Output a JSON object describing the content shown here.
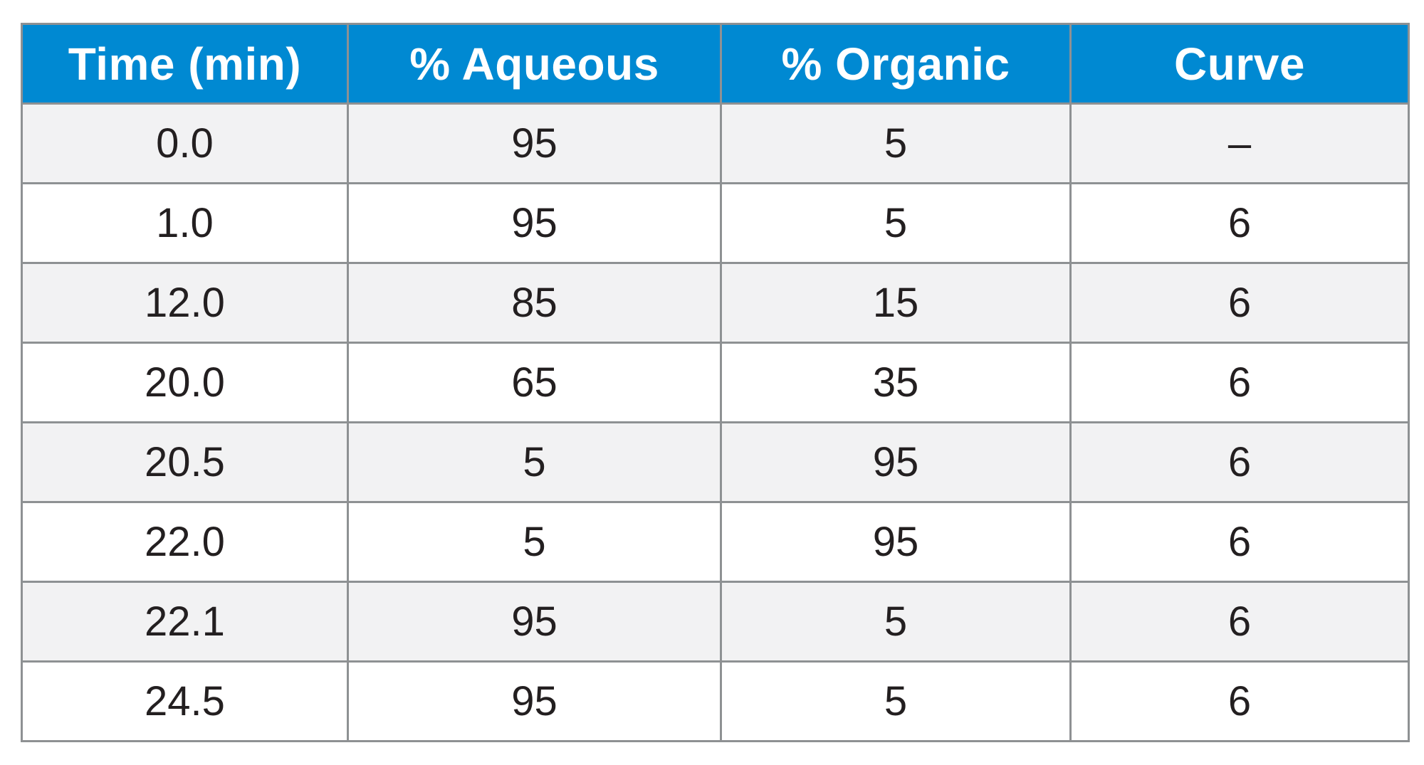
{
  "table": {
    "columns": [
      "Time (min)",
      "% Aqueous",
      "% Organic",
      "Curve"
    ],
    "rows": [
      [
        "0.0",
        "95",
        "5",
        "–"
      ],
      [
        "1.0",
        "95",
        "5",
        "6"
      ],
      [
        "12.0",
        "85",
        "15",
        "6"
      ],
      [
        "20.0",
        "65",
        "35",
        "6"
      ],
      [
        "20.5",
        "5",
        "95",
        "6"
      ],
      [
        "22.0",
        "5",
        "95",
        "6"
      ],
      [
        "22.1",
        "95",
        "5",
        "6"
      ],
      [
        "24.5",
        "95",
        "5",
        "6"
      ]
    ]
  },
  "colors": {
    "header_bg": "#0089d2",
    "header_text": "#ffffff",
    "row_alt_bg": "#f2f2f3",
    "row_bg": "#ffffff",
    "border": "#8e9193",
    "cell_text": "#231f20"
  }
}
